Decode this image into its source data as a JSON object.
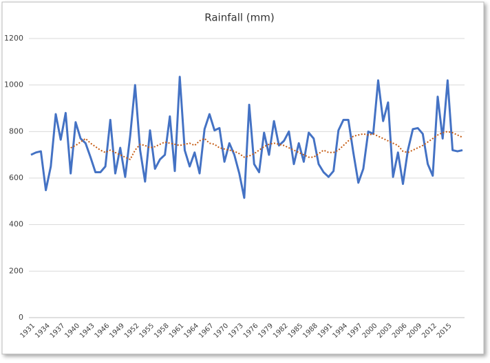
{
  "chart_data": {
    "type": "line",
    "title": "Rainfall (mm)",
    "categories": [
      "1931",
      null,
      null,
      "1934",
      null,
      null,
      "1937",
      null,
      null,
      "1940",
      null,
      null,
      "1943",
      null,
      null,
      "1946",
      null,
      null,
      "1949",
      null,
      null,
      "1952",
      null,
      null,
      "1955",
      null,
      null,
      "1958",
      null,
      null,
      "1961",
      null,
      null,
      "1964",
      null,
      null,
      "1967",
      null,
      null,
      "1970",
      null,
      null,
      "1973",
      null,
      null,
      "1976",
      null,
      null,
      "1979",
      null,
      null,
      "1982",
      null,
      null,
      "1985",
      null,
      null,
      "1988",
      null,
      null,
      "1991",
      null,
      null,
      "1994",
      null,
      null,
      "1997",
      null,
      null,
      "2000",
      null,
      null,
      "2003",
      null,
      null,
      "2006",
      null,
      null,
      "2009",
      null,
      null,
      "2012",
      null,
      null,
      "2015",
      null,
      null,
      null
    ],
    "series": [
      {
        "color": "#4472c4",
        "line_style": "solid",
        "values": [
          700,
          710,
          715,
          548,
          650,
          875,
          765,
          880,
          620,
          840,
          770,
          750,
          690,
          625,
          625,
          650,
          850,
          620,
          730,
          605,
          780,
          1000,
          720,
          585,
          805,
          640,
          680,
          700,
          865,
          630,
          1035,
          720,
          650,
          710,
          620,
          810,
          875,
          805,
          815,
          670,
          750,
          700,
          620,
          515,
          915,
          660,
          625,
          795,
          700,
          845,
          740,
          760,
          800,
          660,
          750,
          670,
          795,
          770,
          660,
          625,
          605,
          630,
          805,
          850,
          850,
          710,
          580,
          640,
          800,
          790,
          1020,
          845,
          925,
          605,
          710,
          575,
          720,
          810,
          815,
          790,
          660,
          610,
          950,
          770,
          1020,
          720,
          715,
          720
        ]
      },
      {
        "color": "#c55a11",
        "line_style": "dotted",
        "values": [
          null,
          null,
          null,
          null,
          null,
          null,
          null,
          null,
          730,
          740,
          755,
          770,
          750,
          735,
          720,
          710,
          720,
          710,
          700,
          690,
          680,
          720,
          745,
          740,
          730,
          735,
          745,
          755,
          750,
          745,
          740,
          745,
          750,
          740,
          760,
          770,
          750,
          745,
          730,
          725,
          720,
          715,
          705,
          690,
          695,
          705,
          720,
          735,
          745,
          750,
          745,
          740,
          730,
          720,
          710,
          700,
          690,
          690,
          705,
          720,
          710,
          710,
          720,
          740,
          760,
          780,
          785,
          790,
          785,
          790,
          780,
          770,
          760,
          750,
          740,
          715,
          710,
          720,
          730,
          740,
          755,
          770,
          785,
          795,
          800,
          795,
          785,
          775
        ]
      }
    ],
    "ylim": [
      0,
      1200
    ],
    "yticks": [
      0,
      200,
      400,
      600,
      800,
      1000,
      1200
    ],
    "grid": true
  }
}
